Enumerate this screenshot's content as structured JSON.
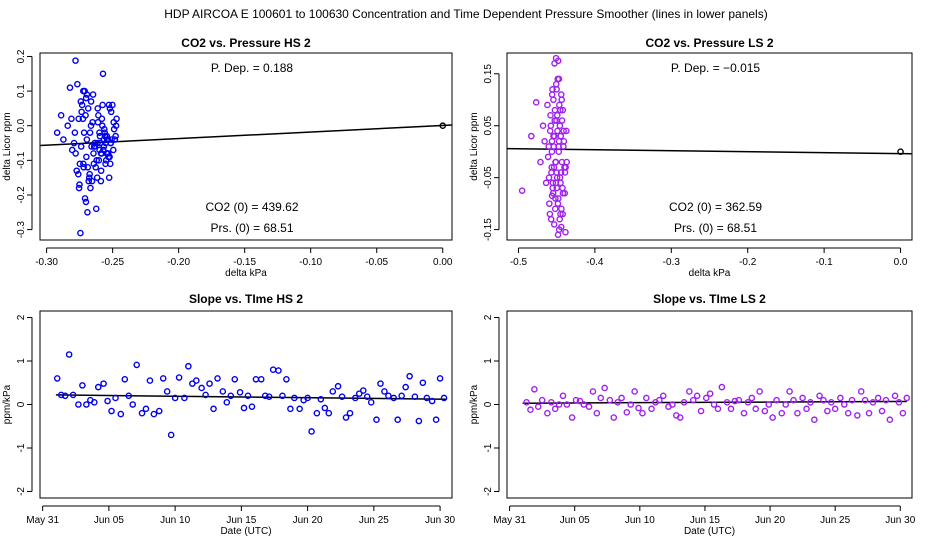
{
  "title": "HDP   AIRCOA E   100601 to 100630   Concentration and Time Dependent Pressure Smoother (lines in lower panels)",
  "colors": {
    "hs": "#0000ee",
    "ls": "#a020f0",
    "fit": "#000000"
  },
  "chart_data": [
    {
      "type": "scatter",
      "title": "CO2 vs. Pressure HS 2",
      "xlabel": "delta kPa",
      "ylabel": "delta Licor ppm",
      "xlim": [
        -0.305,
        0.007
      ],
      "ylim": [
        -0.33,
        0.21
      ],
      "xticks": [
        -0.3,
        -0.25,
        -0.2,
        -0.15,
        -0.1,
        -0.05,
        0.0
      ],
      "xtick_labels": [
        "-0.30",
        "-0.25",
        "-0.20",
        "-0.15",
        "-0.10",
        "-0.05",
        "0.00"
      ],
      "yticks": [
        -0.3,
        -0.2,
        -0.1,
        0.0,
        0.1,
        0.2
      ],
      "ytick_labels": [
        "-0.3",
        "-0.2",
        "-0.1",
        "0.0",
        "0.1",
        "0.2"
      ],
      "annotations": {
        "p_dep": "P. Dep. =  0.188",
        "co2_0": "CO2 (0) =  439.62",
        "prs_0": "Prs. (0) =  68.51"
      },
      "fit_line": {
        "x": [
          -0.305,
          0.007
        ],
        "y": [
          -0.057,
          0.002
        ]
      },
      "reference_point": {
        "x": 0.0,
        "y": 0.0
      },
      "points": {
        "x": [
          -0.2781,
          -0.2757,
          -0.2738,
          -0.2719,
          -0.2701,
          -0.2685,
          -0.2668,
          -0.2652,
          -0.2636,
          -0.2621,
          -0.2608,
          -0.2596,
          -0.2584,
          -0.2573,
          -0.2563,
          -0.2552,
          -0.2541,
          -0.2531,
          -0.2521,
          -0.2511,
          -0.2492,
          -0.2474,
          -0.292,
          -0.289,
          -0.2873,
          -0.284,
          -0.2823,
          -0.2806,
          -0.2786,
          -0.2767,
          -0.2748,
          -0.2731,
          -0.2712,
          -0.2695,
          -0.2677,
          -0.266,
          -0.2645,
          -0.2628,
          -0.2613,
          -0.26,
          -0.2589,
          -0.2578,
          -0.2566,
          -0.2557,
          -0.2546,
          -0.2536,
          -0.2526,
          -0.2516,
          -0.2502,
          -0.2483,
          -0.2812,
          -0.2792,
          -0.2772,
          -0.2754,
          -0.2735,
          -0.2716,
          -0.2699,
          -0.2681,
          -0.2664,
          -0.2648,
          -0.2632,
          -0.2617,
          -0.2604,
          -0.2593,
          -0.2581,
          -0.257,
          -0.256,
          -0.2549,
          -0.2539,
          -0.2528,
          -0.2518,
          -0.2508,
          -0.2489,
          -0.247,
          -0.278,
          -0.276,
          -0.2741,
          -0.2722,
          -0.2705,
          -0.2688,
          -0.2671,
          -0.2656,
          -0.264,
          -0.2624,
          -0.2611,
          -0.2599,
          -0.2587,
          -0.2576,
          -0.2565,
          -0.2554,
          -0.2544,
          -0.2533,
          -0.2523,
          -0.2514,
          -0.2495,
          -0.2477,
          -0.2751,
          -0.2709,
          -0.2691,
          -0.2674,
          -0.2642,
          -0.2614,
          -0.2588,
          -0.2744,
          -0.2725,
          -0.2702,
          -0.2663,
          -0.2635,
          -0.2722,
          -0.2695
        ],
        "y": [
          0.188,
          0.02,
          -0.06,
          -0.12,
          0.08,
          0.05,
          -0.18,
          0.01,
          -0.05,
          -0.1,
          0.03,
          -0.03,
          -0.08,
          0.15,
          -0.01,
          -0.05,
          -0.04,
          -0.09,
          0.05,
          0.04,
          0.01,
          0.0,
          -0.02,
          0.03,
          -0.04,
          0.0,
          0.11,
          -0.07,
          -0.02,
          0.12,
          -0.11,
          0.06,
          0.1,
          -0.04,
          -0.15,
          -0.06,
          -0.08,
          -0.12,
          0.05,
          -0.02,
          -0.16,
          0.0,
          -0.06,
          -0.03,
          -0.08,
          -0.04,
          -0.15,
          -0.05,
          0.06,
          -0.04,
          0.02,
          -0.05,
          -0.13,
          -0.18,
          0.04,
          -0.02,
          -0.09,
          -0.16,
          0.0,
          0.09,
          -0.05,
          -0.15,
          -0.1,
          -0.05,
          0.02,
          -0.07,
          -0.02,
          -0.1,
          -0.08,
          0.06,
          -0.11,
          -0.04,
          -0.01,
          0.02,
          -0.08,
          -0.14,
          0.07,
          -0.11,
          0.03,
          -0.12,
          -0.02,
          -0.16,
          -0.06,
          -0.24,
          0.01,
          -0.07,
          -0.13,
          0.06,
          -0.04,
          -0.11,
          -0.03,
          -0.08,
          -0.09,
          -0.05,
          -0.07,
          -0.03,
          -0.17,
          -0.21,
          -0.25,
          -0.14,
          -0.11,
          -0.05,
          -0.08,
          -0.31,
          0.02,
          -0.22,
          0.07,
          -0.06,
          0.1,
          0.09
        ]
      }
    },
    {
      "type": "scatter",
      "title": "CO2 vs. Pressure LS 2",
      "xlabel": "delta kPa",
      "ylabel": "delta Licor ppm",
      "xlim": [
        -0.515,
        0.015
      ],
      "ylim": [
        -0.17,
        0.19
      ],
      "xticks": [
        -0.5,
        -0.4,
        -0.3,
        -0.2,
        -0.1,
        0.0
      ],
      "xtick_labels": [
        "-0.5",
        "-0.4",
        "-0.3",
        "-0.2",
        "-0.1",
        "0.0"
      ],
      "yticks": [
        -0.15,
        -0.05,
        0.05,
        0.15
      ],
      "ytick_labels": [
        "-0.15",
        "-0.05",
        "0.05",
        "0.15"
      ],
      "annotations": {
        "p_dep": "P. Dep. =  −0.015",
        "co2_0": "CO2 (0) =  362.59",
        "prs_0": "Prs. (0) =  68.51"
      },
      "fit_line": {
        "x": [
          -0.515,
          0.015
        ],
        "y": [
          0.006,
          -0.004
        ]
      },
      "reference_point": {
        "x": 0.0,
        "y": 0.0
      },
      "points": {
        "x": [
          -0.4952,
          -0.4832,
          -0.4768,
          -0.4712,
          -0.4678,
          -0.4658,
          -0.4638,
          -0.4621,
          -0.4604,
          -0.4589,
          -0.4576,
          -0.4565,
          -0.4555,
          -0.4546,
          -0.4537,
          -0.4528,
          -0.4519,
          -0.4511,
          -0.4502,
          -0.4494,
          -0.4486,
          -0.4478,
          -0.4469,
          -0.4461,
          -0.4452,
          -0.4443,
          -0.4434,
          -0.4424,
          -0.4412,
          -0.4398,
          -0.4385,
          -0.4373,
          -0.4369,
          -0.4612,
          -0.4596,
          -0.4581,
          -0.4569,
          -0.4559,
          -0.455,
          -0.4541,
          -0.4532,
          -0.4523,
          -0.4515,
          -0.4506,
          -0.4498,
          -0.449,
          -0.4482,
          -0.4473,
          -0.4465,
          -0.4456,
          -0.4447,
          -0.4438,
          -0.4429,
          -0.4418,
          -0.4405,
          -0.4391,
          -0.46,
          -0.4585,
          -0.4572,
          -0.4561,
          -0.4552,
          -0.4543,
          -0.4534,
          -0.4525,
          -0.4517,
          -0.4508,
          -0.45,
          -0.4492,
          -0.4484,
          -0.4475,
          -0.4467,
          -0.4458,
          -0.4449,
          -0.444,
          -0.4431,
          -0.4421,
          -0.4408,
          -0.4394,
          -0.4382,
          -0.4562,
          -0.453,
          -0.451,
          -0.447,
          -0.445,
          -0.442,
          -0.448,
          -0.456,
          -0.45,
          -0.444
        ],
        "y": [
          -0.075,
          0.03,
          0.095,
          -0.02,
          0.05,
          0.02,
          -0.06,
          0.09,
          0.01,
          -0.12,
          0.05,
          -0.03,
          0.12,
          -0.08,
          0.01,
          0.17,
          -0.11,
          -0.02,
          0.06,
          -0.05,
          0.14,
          -0.09,
          0.02,
          -0.13,
          0.08,
          -0.04,
          0.1,
          -0.07,
          0.01,
          -0.03,
          -0.155,
          0.04,
          -0.02,
          -0.01,
          -0.1,
          0.07,
          -0.04,
          0.11,
          -0.06,
          0.03,
          -0.14,
          0.08,
          -0.02,
          0.13,
          -0.07,
          0.04,
          -0.16,
          0.0,
          0.09,
          -0.05,
          0.03,
          -0.11,
          0.06,
          -0.08,
          0.02,
          -0.04,
          -0.05,
          0.04,
          -0.13,
          0.02,
          -0.07,
          0.1,
          -0.03,
          0.06,
          -0.09,
          0.18,
          -0.04,
          0.07,
          -0.1,
          0.01,
          -0.15,
          0.05,
          -0.06,
          0.11,
          -0.02,
          -0.12,
          0.04,
          -0.08,
          -0.03,
          0.0,
          0.03,
          -0.06,
          0.14,
          -0.12,
          0.08,
          0.175,
          -0.085,
          0.12,
          -0.145
        ]
      }
    },
    {
      "type": "scatter",
      "title": "Slope vs. TIme HS 2",
      "xlabel": "Date (UTC)",
      "ylabel": "ppm/kPa",
      "xlim": [
        -0.2,
        30.9
      ],
      "ylim": [
        -2.15,
        2.15
      ],
      "xticks": [
        0,
        5,
        10,
        15,
        20,
        25,
        30
      ],
      "xtick_labels": [
        "May 31",
        "Jun 05",
        "Jun 10",
        "Jun 15",
        "Jun 20",
        "Jun 25",
        "Jun 30"
      ],
      "yticks": [
        -2,
        -1,
        0,
        1,
        2
      ],
      "ytick_labels": [
        "-2",
        "-1",
        "0",
        "1",
        "2"
      ],
      "fit_line": {
        "x": [
          1.0,
          30.5
        ],
        "y": [
          0.22,
          0.12
        ]
      },
      "points": {
        "x": [
          1.1,
          1.4,
          1.7,
          2.0,
          2.3,
          2.7,
          3.0,
          3.3,
          3.6,
          3.9,
          4.2,
          4.6,
          4.9,
          5.2,
          5.5,
          5.9,
          6.2,
          6.5,
          6.8,
          7.1,
          7.5,
          7.8,
          8.1,
          8.4,
          8.8,
          9.1,
          9.4,
          9.7,
          10.0,
          10.3,
          10.7,
          11.0,
          11.3,
          11.6,
          12.0,
          12.3,
          12.6,
          12.9,
          13.2,
          13.6,
          13.9,
          14.2,
          14.5,
          14.9,
          15.2,
          15.5,
          15.8,
          16.1,
          16.5,
          16.8,
          17.1,
          17.4,
          17.8,
          18.1,
          18.4,
          18.7,
          19.0,
          19.4,
          19.7,
          20.0,
          20.3,
          20.7,
          21.0,
          21.3,
          21.6,
          21.9,
          22.3,
          22.6,
          22.9,
          23.2,
          23.6,
          23.9,
          24.2,
          24.5,
          24.8,
          25.2,
          25.5,
          25.8,
          26.1,
          26.5,
          26.8,
          27.1,
          27.4,
          27.7,
          28.1,
          28.4,
          28.7,
          29.0,
          29.4,
          29.7,
          30.0,
          30.3
        ],
        "y": [
          0.6,
          0.22,
          0.2,
          1.15,
          0.22,
          0.0,
          0.44,
          0.0,
          0.1,
          0.05,
          0.4,
          0.48,
          0.08,
          -0.15,
          0.15,
          -0.22,
          0.58,
          0.2,
          0.0,
          0.91,
          -0.2,
          -0.1,
          0.55,
          -0.22,
          -0.15,
          0.6,
          0.3,
          -0.7,
          0.15,
          0.62,
          0.15,
          0.88,
          0.48,
          0.55,
          0.38,
          0.22,
          0.48,
          -0.1,
          0.6,
          0.3,
          0.05,
          0.2,
          0.58,
          0.28,
          -0.08,
          0.2,
          -0.05,
          0.58,
          0.58,
          0.2,
          0.18,
          0.8,
          0.78,
          0.2,
          0.58,
          -0.1,
          0.15,
          -0.1,
          0.1,
          0.15,
          -0.62,
          -0.2,
          0.12,
          -0.08,
          -0.2,
          0.3,
          0.42,
          0.18,
          -0.3,
          -0.2,
          0.15,
          0.25,
          0.32,
          0.18,
          0.05,
          -0.35,
          0.48,
          0.3,
          0.2,
          0.15,
          -0.35,
          0.2,
          0.4,
          0.65,
          0.18,
          -0.38,
          0.5,
          0.15,
          0.08,
          -0.35,
          0.6,
          0.15
        ]
      }
    },
    {
      "type": "scatter",
      "title": "Slope vs. TIme LS 2",
      "xlabel": "Date (UTC)",
      "ylabel": "ppm/kPa",
      "xlim": [
        -0.2,
        30.9
      ],
      "ylim": [
        -2.15,
        2.15
      ],
      "xticks": [
        0,
        5,
        10,
        15,
        20,
        25,
        30
      ],
      "xtick_labels": [
        "May 31",
        "Jun 05",
        "Jun 10",
        "Jun 15",
        "Jun 20",
        "Jun 25",
        "Jun 30"
      ],
      "yticks": [
        -2,
        -1,
        0,
        1,
        2
      ],
      "ytick_labels": [
        "-2",
        "-1",
        "0",
        "1",
        "2"
      ],
      "fit_line": {
        "x": [
          1.0,
          30.5
        ],
        "y": [
          0.03,
          0.07
        ]
      },
      "points": {
        "x": [
          1.3,
          1.6,
          1.9,
          2.2,
          2.5,
          2.9,
          3.2,
          3.5,
          3.8,
          4.1,
          4.4,
          4.8,
          5.1,
          5.4,
          5.7,
          6.1,
          6.4,
          6.7,
          7.0,
          7.3,
          7.7,
          8.0,
          8.3,
          8.6,
          9.0,
          9.3,
          9.6,
          9.9,
          10.2,
          10.5,
          10.9,
          11.2,
          11.5,
          11.8,
          12.2,
          12.5,
          12.8,
          13.1,
          13.4,
          13.8,
          14.1,
          14.4,
          14.7,
          15.1,
          15.4,
          15.7,
          16.0,
          16.3,
          16.7,
          17.0,
          17.3,
          17.6,
          18.0,
          18.3,
          18.6,
          18.9,
          19.2,
          19.6,
          19.9,
          20.2,
          20.5,
          20.9,
          21.2,
          21.5,
          21.8,
          22.1,
          22.5,
          22.8,
          23.1,
          23.4,
          23.8,
          24.1,
          24.4,
          24.7,
          25.0,
          25.4,
          25.7,
          26.0,
          26.3,
          26.7,
          27.0,
          27.3,
          27.6,
          27.9,
          28.3,
          28.6,
          28.9,
          29.2,
          29.6,
          29.9,
          30.2,
          30.5
        ],
        "y": [
          0.05,
          -0.12,
          0.35,
          -0.05,
          0.1,
          -0.2,
          0.05,
          -0.1,
          0.0,
          0.2,
          0.0,
          -0.3,
          0.1,
          0.08,
          0.0,
          -0.05,
          0.3,
          -0.2,
          0.15,
          0.38,
          0.1,
          -0.3,
          0.05,
          0.15,
          -0.18,
          0.0,
          0.3,
          -0.08,
          -0.2,
          0.15,
          -0.1,
          0.05,
          0.1,
          0.2,
          -0.05,
          0.0,
          -0.25,
          -0.3,
          0.05,
          0.3,
          0.1,
          0.2,
          -0.15,
          0.15,
          0.25,
          0.0,
          -0.1,
          0.4,
          0.05,
          -0.1,
          0.08,
          0.1,
          -0.2,
          0.05,
          0.15,
          -0.1,
          0.3,
          -0.15,
          0.0,
          -0.3,
          0.1,
          -0.2,
          0.0,
          0.3,
          0.1,
          -0.2,
          0.15,
          -0.1,
          0.05,
          -0.35,
          0.2,
          0.1,
          -0.15,
          0.05,
          -0.1,
          0.15,
          0.0,
          -0.2,
          0.1,
          -0.25,
          0.3,
          0.1,
          -0.2,
          0.05,
          0.15,
          -0.15,
          0.1,
          -0.35,
          0.2,
          0.05,
          -0.2,
          0.15
        ]
      }
    }
  ]
}
